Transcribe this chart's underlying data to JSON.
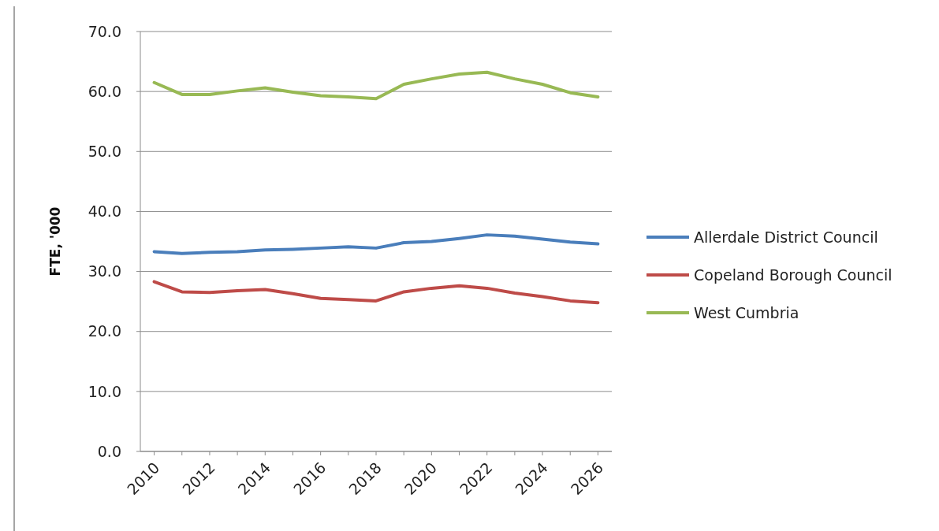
{
  "chart_data": {
    "type": "line",
    "ylabel": "FTE, '000",
    "categories": [
      "2010",
      null,
      "2012",
      null,
      "2014",
      null,
      "2016",
      null,
      "2018",
      null,
      "2020",
      null,
      "2022",
      null,
      "2024",
      null,
      "2026"
    ],
    "series": [
      {
        "name": "Allerdale District Council",
        "color": "#4a7ebb",
        "values": [
          33.3,
          33.0,
          33.2,
          33.3,
          33.6,
          33.7,
          33.9,
          34.1,
          33.9,
          34.8,
          35.0,
          35.5,
          36.1,
          35.9,
          35.4,
          34.9,
          34.6
        ]
      },
      {
        "name": "Copeland Borough Council",
        "color": "#be4b48",
        "values": [
          28.3,
          26.6,
          26.5,
          26.8,
          27.0,
          26.3,
          25.5,
          25.3,
          25.1,
          26.6,
          27.2,
          27.6,
          27.2,
          26.4,
          25.8,
          25.1,
          24.8
        ]
      },
      {
        "name": "West Cumbria",
        "color": "#98b954",
        "values": [
          61.5,
          59.5,
          59.5,
          60.1,
          60.6,
          59.9,
          59.3,
          59.1,
          58.8,
          61.2,
          62.1,
          62.9,
          63.2,
          62.1,
          61.2,
          59.8,
          59.1
        ]
      }
    ],
    "ylim": [
      0,
      70
    ],
    "yticks": [
      {
        "value": 0,
        "label": "0.0"
      },
      {
        "value": 10,
        "label": "10.0"
      },
      {
        "value": 20,
        "label": "20.0"
      },
      {
        "value": 30,
        "label": "30.0"
      },
      {
        "value": 40,
        "label": "40.0"
      },
      {
        "value": 50,
        "label": "50.0"
      },
      {
        "value": 60,
        "label": "60.0"
      },
      {
        "value": 70,
        "label": "70.0"
      }
    ],
    "grid": "y",
    "legend": "right",
    "marker": "none",
    "line_style": "solid"
  }
}
